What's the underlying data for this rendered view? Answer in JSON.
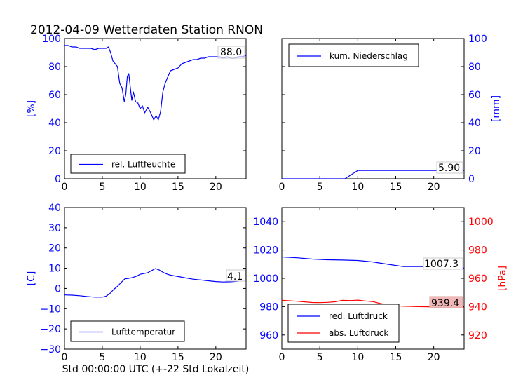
{
  "title": "2012-04-09 Wetterdaten Station RNON",
  "colors": {
    "blue": "#0000ff",
    "red": "#ff0000",
    "axis": "#000000"
  },
  "chart_data": [
    {
      "id": "humidity",
      "type": "line",
      "ylabel": "[%]",
      "ylabel_color": "#0000ff",
      "xlim": [
        0,
        24
      ],
      "ylim": [
        0,
        100
      ],
      "xticks": [
        0,
        5,
        10,
        15,
        20
      ],
      "yticks": [
        0,
        20,
        40,
        60,
        80,
        100
      ],
      "ytick_color": "#0000ff",
      "legend": "lower-left",
      "current_value_label": "88.0",
      "series": [
        {
          "name": "rel. Luftfeuchte",
          "color": "#0000ff",
          "x": [
            0,
            0.5,
            1,
            1.5,
            2,
            2.5,
            3,
            3.5,
            4,
            4.5,
            5,
            5.5,
            5.8,
            6.1,
            6.4,
            6.7,
            7,
            7.3,
            7.6,
            7.9,
            8.1,
            8.3,
            8.5,
            8.7,
            8.9,
            9.1,
            9.4,
            9.7,
            10,
            10.3,
            10.6,
            11,
            11.4,
            11.8,
            12.1,
            12.4,
            12.7,
            13,
            13.3,
            13.6,
            14,
            14.5,
            15,
            15.5,
            16,
            16.5,
            17,
            17.5,
            18,
            18.5,
            19,
            19.5,
            20,
            20.5,
            21,
            21.5,
            22,
            22.5,
            23,
            23.5,
            24
          ],
          "y": [
            95,
            95,
            94,
            94,
            93,
            93,
            93,
            93,
            92,
            93,
            93,
            93,
            94,
            90,
            84,
            82,
            80,
            68,
            65,
            55,
            60,
            73,
            75,
            65,
            56,
            62,
            55,
            54,
            50,
            52,
            47,
            51,
            47,
            42,
            45,
            42,
            48,
            62,
            68,
            72,
            77,
            78,
            79,
            82,
            83,
            84,
            85,
            85,
            86,
            86,
            87,
            87,
            87,
            87,
            86,
            87,
            86,
            86,
            87,
            87,
            88
          ]
        }
      ]
    },
    {
      "id": "precipitation",
      "type": "line",
      "ylabel": "[mm]",
      "ylabel_color": "#0000ff",
      "xlim": [
        0,
        24
      ],
      "ylim": [
        0,
        100
      ],
      "xticks": [
        0,
        5,
        10,
        15,
        20
      ],
      "yticks": [
        0,
        20,
        40,
        60,
        80,
        100
      ],
      "ytick_color": "#0000ff",
      "yaxis_side": "right",
      "legend": "upper-left",
      "current_value_label": "5.90",
      "series": [
        {
          "name": "kum. Niederschlag",
          "color": "#0000ff",
          "x": [
            0,
            8.3,
            10,
            24
          ],
          "y": [
            0,
            0,
            5.9,
            5.9
          ]
        }
      ]
    },
    {
      "id": "temperature",
      "type": "line",
      "ylabel": "[C]",
      "ylabel_color": "#0000ff",
      "xlabel": "Std 00:00:00 UTC (+-22 Std Lokalzeit)",
      "xlim": [
        0,
        24
      ],
      "ylim": [
        -30,
        40
      ],
      "xticks": [
        0,
        5,
        10,
        15,
        20
      ],
      "yticks": [
        -30,
        -20,
        -10,
        0,
        10,
        20,
        30,
        40
      ],
      "ytick_color": "#0000ff",
      "legend": "lower-left",
      "current_value_label": "4.1",
      "series": [
        {
          "name": "Lufttemperatur",
          "color": "#0000ff",
          "x": [
            0,
            1,
            2,
            3,
            4,
            5,
            5.5,
            6,
            6.5,
            7,
            7.5,
            8,
            8.5,
            9,
            9.5,
            10,
            10.5,
            11,
            11.5,
            12,
            12.5,
            13,
            13.5,
            14,
            15,
            16,
            17,
            18,
            19,
            20,
            21,
            22,
            23,
            24
          ],
          "y": [
            -3.2,
            -3.3,
            -3.6,
            -4,
            -4.3,
            -4.3,
            -3.8,
            -2.5,
            -0.5,
            1,
            3,
            4.8,
            5,
            5.4,
            6,
            7,
            7.4,
            7.8,
            8.8,
            9.8,
            9.2,
            8,
            7.2,
            6.6,
            5.9,
            5.2,
            4.6,
            4.2,
            3.8,
            3.4,
            3.2,
            3.3,
            3.6,
            4.1
          ]
        }
      ]
    },
    {
      "id": "pressure",
      "type": "line",
      "xlim": [
        0,
        24
      ],
      "xticks": [
        0,
        5,
        10,
        15,
        20
      ],
      "ylim": [
        950,
        1050
      ],
      "yticks": [
        960,
        980,
        1000,
        1020,
        1040
      ],
      "ytick_color": "#0000ff",
      "ylim_right": [
        910,
        1010
      ],
      "yticks_right": [
        920,
        940,
        960,
        980,
        1000
      ],
      "ytick_right_color": "#ff0000",
      "ylabel_right": "[hPa]",
      "ylabel_right_color": "#ff0000",
      "legend": "lower-left",
      "current_value_labels": [
        "1007.3",
        "939.4"
      ],
      "series": [
        {
          "name": "red. Luftdruck",
          "color": "#0000ff",
          "axis": "left",
          "x": [
            0,
            2,
            4,
            6,
            8,
            10,
            12,
            14,
            16,
            18,
            20,
            22,
            24
          ],
          "y": [
            1015.1,
            1014.5,
            1013.6,
            1013.1,
            1012.9,
            1012.6,
            1011.6,
            1009.9,
            1008.3,
            1008.4,
            1008.1,
            1007.8,
            1007.3
          ]
        },
        {
          "name": "abs. Luftdruck",
          "color": "#ff0000",
          "axis": "right",
          "x": [
            0,
            2,
            4,
            5,
            6,
            7,
            8,
            9,
            10,
            11,
            12,
            13,
            14,
            15,
            16,
            18,
            20,
            22,
            24
          ],
          "y": [
            944.5,
            943.8,
            942.9,
            942.8,
            943.0,
            943.4,
            944.5,
            944.3,
            944.6,
            944.0,
            943.5,
            942.2,
            941.3,
            940.6,
            940.3,
            940.0,
            939.8,
            939.6,
            939.4
          ]
        }
      ]
    }
  ]
}
